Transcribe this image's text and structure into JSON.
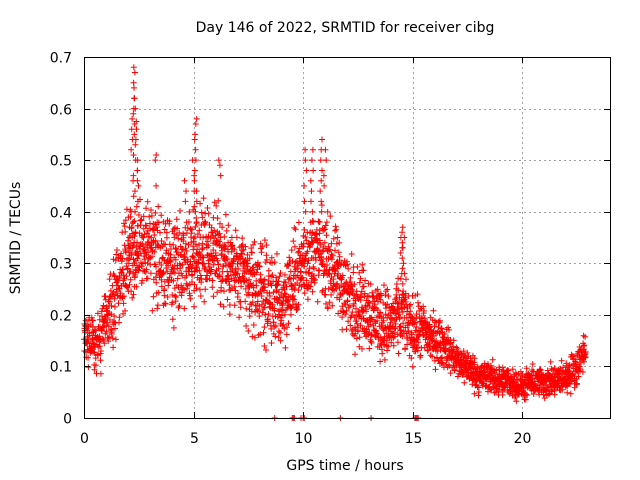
{
  "chart_data": {
    "type": "scatter",
    "title": "Day 146 of 2022, SRMTID for receiver cibg",
    "xlabel": "GPS time / hours",
    "ylabel": "SRMTID / TECUs",
    "xlim": [
      0,
      24
    ],
    "ylim": [
      0,
      0.7
    ],
    "xticks": [
      0,
      5,
      10,
      15,
      20
    ],
    "xtick_labels": [
      "0",
      "5",
      "10",
      "15",
      "20"
    ],
    "yticks": [
      0,
      0.1,
      0.2,
      0.3,
      0.4,
      0.5,
      0.6,
      0.7
    ],
    "ytick_labels": [
      "0",
      "0.1",
      "0.2",
      "0.3",
      "0.4",
      "0.5",
      "0.6",
      "0.7"
    ],
    "grid": true,
    "marker": "+",
    "color": "#ff0000",
    "series": [
      {
        "name": "SRMTID",
        "trend": [
          [
            0.0,
            0.15
          ],
          [
            0.5,
            0.14
          ],
          [
            1.0,
            0.18
          ],
          [
            1.5,
            0.25
          ],
          [
            2.0,
            0.32
          ],
          [
            2.5,
            0.33
          ],
          [
            3.0,
            0.33
          ],
          [
            3.5,
            0.3
          ],
          [
            4.0,
            0.28
          ],
          [
            4.5,
            0.3
          ],
          [
            5.0,
            0.32
          ],
          [
            5.5,
            0.33
          ],
          [
            6.0,
            0.32
          ],
          [
            6.5,
            0.3
          ],
          [
            7.0,
            0.28
          ],
          [
            7.5,
            0.26
          ],
          [
            8.0,
            0.25
          ],
          [
            8.5,
            0.23
          ],
          [
            9.0,
            0.22
          ],
          [
            9.5,
            0.26
          ],
          [
            10.0,
            0.3
          ],
          [
            10.5,
            0.32
          ],
          [
            11.0,
            0.31
          ],
          [
            11.5,
            0.28
          ],
          [
            12.0,
            0.24
          ],
          [
            12.5,
            0.22
          ],
          [
            13.0,
            0.21
          ],
          [
            13.5,
            0.19
          ],
          [
            14.0,
            0.18
          ],
          [
            14.5,
            0.2
          ],
          [
            15.0,
            0.17
          ],
          [
            15.5,
            0.17
          ],
          [
            16.0,
            0.15
          ],
          [
            16.5,
            0.14
          ],
          [
            17.0,
            0.11
          ],
          [
            17.5,
            0.1
          ],
          [
            18.0,
            0.08
          ],
          [
            18.5,
            0.08
          ],
          [
            19.0,
            0.07
          ],
          [
            19.5,
            0.07
          ],
          [
            20.0,
            0.06
          ],
          [
            20.5,
            0.07
          ],
          [
            21.0,
            0.07
          ],
          [
            21.5,
            0.07
          ],
          [
            22.0,
            0.08
          ],
          [
            22.5,
            0.1
          ],
          [
            22.8,
            0.13
          ]
        ],
        "spread": [
          [
            0.0,
            0.06
          ],
          [
            2.0,
            0.14
          ],
          [
            5.0,
            0.14
          ],
          [
            8.0,
            0.13
          ],
          [
            12.0,
            0.12
          ],
          [
            15.0,
            0.09
          ],
          [
            17.0,
            0.05
          ],
          [
            20.0,
            0.04
          ],
          [
            22.8,
            0.05
          ]
        ],
        "highlights": [
          {
            "x": 2.3,
            "values": [
              0.68,
              0.67,
              0.65,
              0.64,
              0.62,
              0.6,
              0.55,
              0.51,
              0.5,
              0.47,
              0.46,
              0.44,
              0.43,
              0.4,
              0.38,
              0.36,
              0.34,
              0.32,
              0.3
            ]
          },
          {
            "x": 2.3,
            "values": [
              0.59,
              0.57,
              0.53
            ]
          },
          {
            "x": 2.1,
            "values": [
              0.4,
              0.39,
              0.37,
              0.35,
              0.33,
              0.31
            ]
          },
          {
            "x": 2.45,
            "values": [
              0.48,
              0.45,
              0.42,
              0.41
            ]
          },
          {
            "x": 2.35,
            "values": [
              0.575,
              0.56,
              0.54
            ]
          },
          {
            "x": 2.25,
            "values": [
              0.62,
              0.6,
              0.58
            ]
          },
          {
            "x": 2.4,
            "values": [
              0.5,
              0.48,
              0.46
            ]
          },
          {
            "x": 2.2,
            "values": [
              0.56,
              0.54,
              0.52
            ]
          },
          {
            "x": 5.1,
            "values": [
              0.58,
              0.57,
              0.55,
              0.54,
              0.52,
              0.5,
              0.48,
              0.46,
              0.44,
              0.42,
              0.4,
              0.38
            ]
          },
          {
            "x": 5.0,
            "values": [
              0.5,
              0.47,
              0.44,
              0.41
            ]
          },
          {
            "x": 10.4,
            "values": [
              0.52,
              0.5,
              0.48,
              0.46,
              0.44,
              0.42,
              0.4,
              0.38,
              0.36,
              0.34
            ]
          },
          {
            "x": 10.8,
            "values": [
              0.54,
              0.52,
              0.5,
              0.48,
              0.46,
              0.44,
              0.42,
              0.4,
              0.38
            ]
          },
          {
            "x": 10.1,
            "values": [
              0.52,
              0.5,
              0.48,
              0.45,
              0.42,
              0.4
            ]
          },
          {
            "x": 11.0,
            "values": [
              0.52,
              0.5,
              0.47,
              0.45
            ]
          },
          {
            "x": 14.5,
            "values": [
              0.37,
              0.36,
              0.35,
              0.34,
              0.33,
              0.32,
              0.31,
              0.29,
              0.28,
              0.27,
              0.26
            ]
          },
          {
            "x": 14.6,
            "values": [
              0.35,
              0.33,
              0.3,
              0.28
            ]
          },
          {
            "x": 3.3,
            "values": [
              0.51,
              0.5,
              0.45
            ]
          },
          {
            "x": 6.2,
            "values": [
              0.5,
              0.49,
              0.47
            ]
          },
          {
            "x": 4.6,
            "values": [
              0.46,
              0.44,
              0.42
            ]
          }
        ],
        "baseline_points": [
          {
            "x": 8.7,
            "y": 0.0
          },
          {
            "x": 9.5,
            "y": 0.0
          },
          {
            "x": 9.55,
            "y": 0.0
          },
          {
            "x": 9.6,
            "y": 0.0
          },
          {
            "x": 9.9,
            "y": 0.0
          },
          {
            "x": 10.0,
            "y": 0.0
          },
          {
            "x": 10.05,
            "y": 0.0
          },
          {
            "x": 11.7,
            "y": 0.0
          },
          {
            "x": 13.1,
            "y": 0.0
          },
          {
            "x": 15.1,
            "y": 0.0
          },
          {
            "x": 15.15,
            "y": 0.0
          },
          {
            "x": 15.2,
            "y": 0.0
          },
          {
            "x": 15.25,
            "y": 0.0
          }
        ],
        "x_range_hours": [
          0.0,
          22.9
        ],
        "approx_point_count": 2700
      }
    ]
  }
}
